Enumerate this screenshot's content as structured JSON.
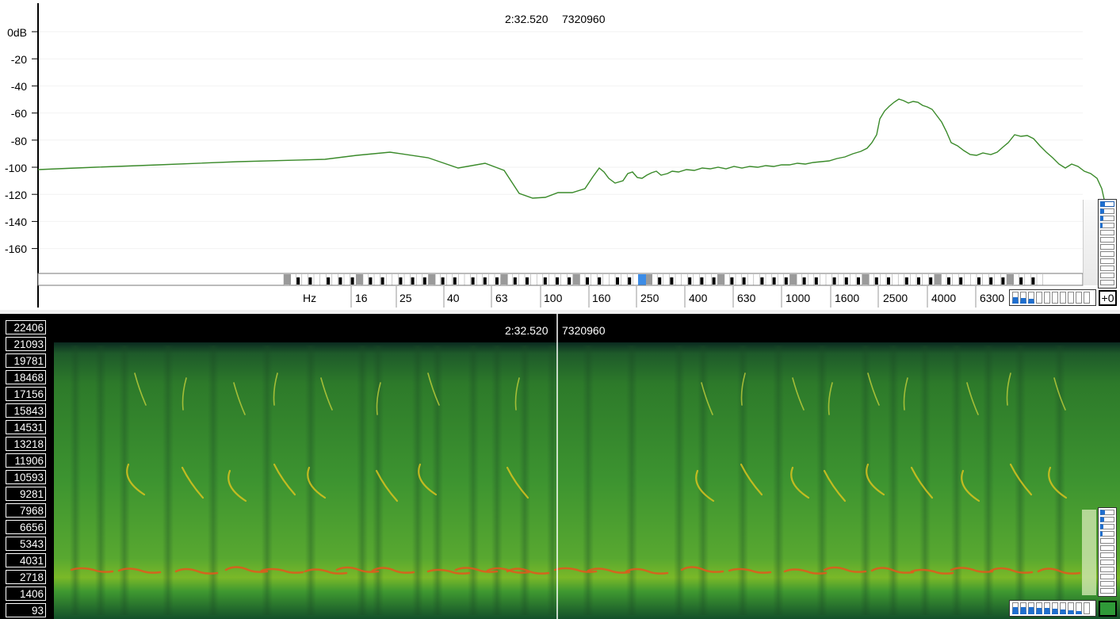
{
  "spectrum": {
    "readout_time": "2:32.520",
    "readout_sample": "7320960",
    "db_labels": [
      "0dB",
      "-20",
      "-40",
      "-60",
      "-80",
      "-100",
      "-120",
      "-140",
      "-160"
    ],
    "hz_labels": [
      "Hz",
      "16",
      "25",
      "40",
      "63",
      "100",
      "160",
      "250",
      "400",
      "630",
      "1000",
      "1600",
      "2500",
      "4000",
      "6300"
    ],
    "curve_color": "#3a8a2a",
    "highlight_key_color": "#3c8ce6",
    "zoom_button_label": "+0"
  },
  "spectrogram": {
    "readout_time": "2:32.520",
    "readout_sample": "7320960",
    "freq_labels": [
      "22406",
      "21093",
      "19781",
      "18468",
      "17156",
      "15843",
      "14531",
      "13218",
      "11906",
      "10593",
      "9281",
      "7968",
      "6656",
      "5343",
      "4031",
      "2718",
      "1406",
      "93"
    ],
    "background_color": "#2a8a2a"
  }
}
